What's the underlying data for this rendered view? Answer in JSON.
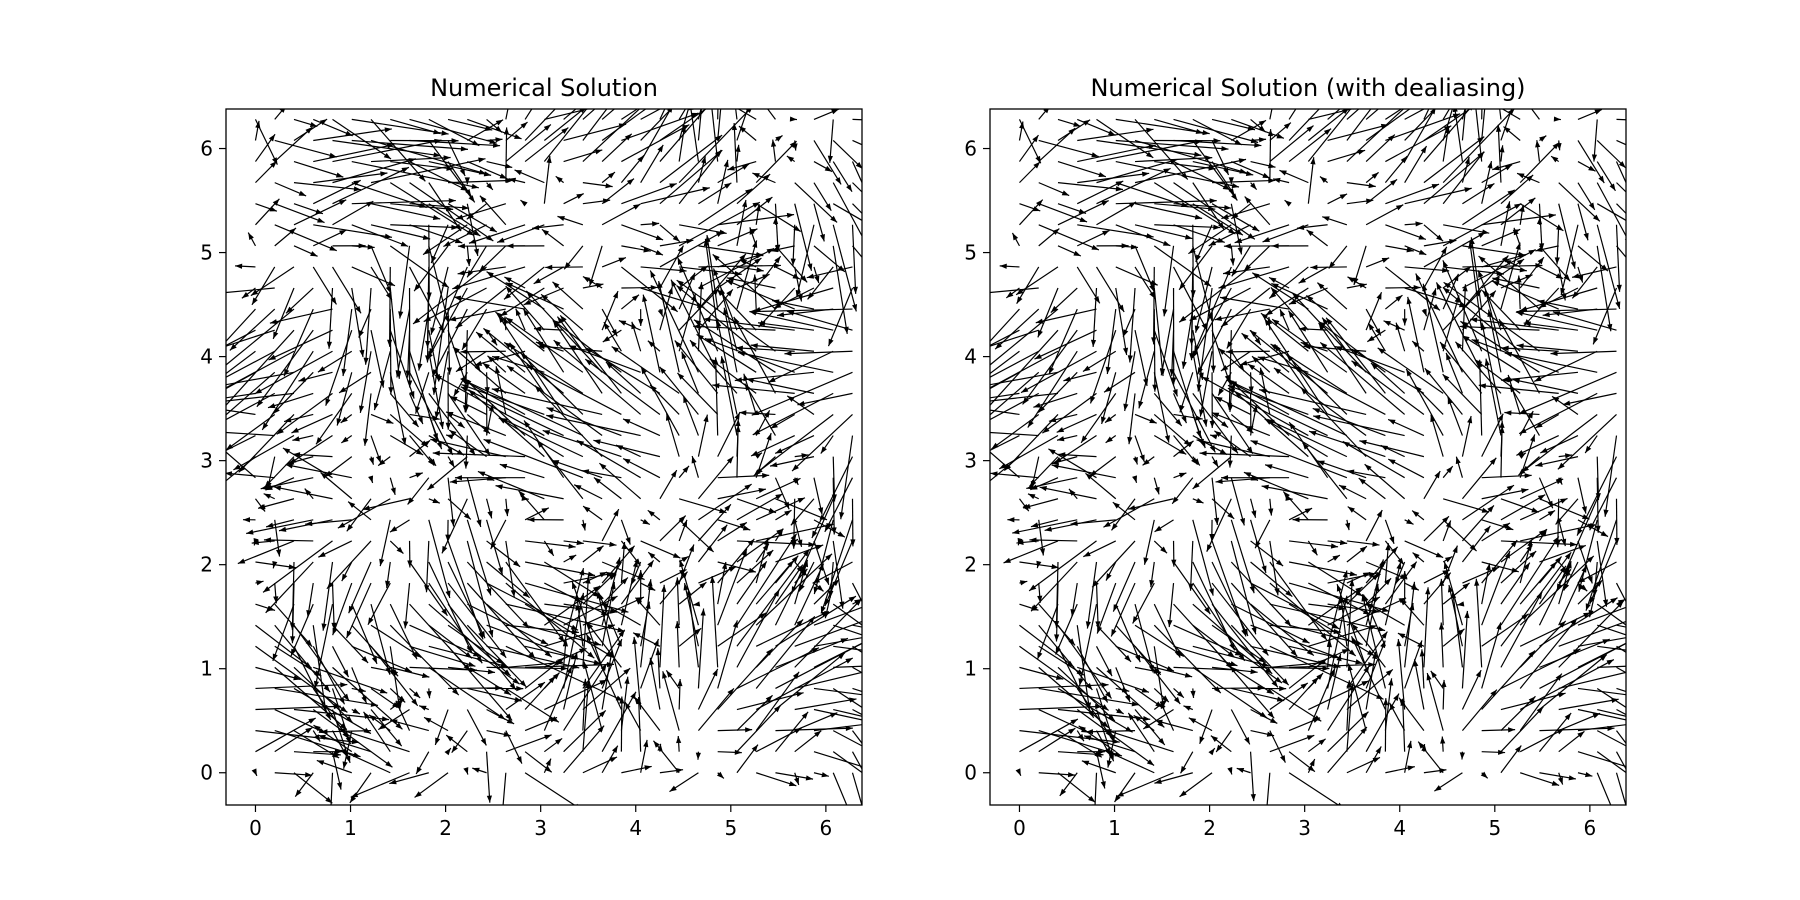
{
  "chart_data": [
    {
      "type": "quiver",
      "title": "Numerical Solution",
      "xlim": [
        -0.31,
        6.38
      ],
      "ylim": [
        -0.31,
        6.38
      ],
      "xticks": [
        0,
        1,
        2,
        3,
        4,
        5,
        6
      ],
      "yticks": [
        0,
        1,
        2,
        3,
        4,
        5,
        6
      ],
      "grid": false,
      "grid_points": {
        "x_start": 0,
        "x_end": 6.28,
        "y_start": 0,
        "y_end": 6.28,
        "count_per_axis": 32
      },
      "arrow_color": "#000000"
    },
    {
      "type": "quiver",
      "title": "Numerical Solution (with dealiasing)",
      "xlim": [
        -0.31,
        6.38
      ],
      "ylim": [
        -0.31,
        6.38
      ],
      "xticks": [
        0,
        1,
        2,
        3,
        4,
        5,
        6
      ],
      "yticks": [
        0,
        1,
        2,
        3,
        4,
        5,
        6
      ],
      "grid": false,
      "grid_points": {
        "x_start": 0,
        "x_end": 6.28,
        "y_start": 0,
        "y_end": 6.28,
        "count_per_axis": 32
      },
      "arrow_color": "#000000"
    }
  ]
}
